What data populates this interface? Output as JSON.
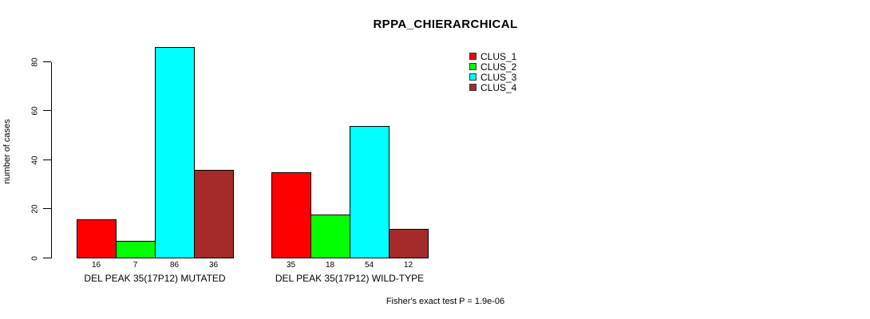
{
  "chart_data": {
    "type": "bar",
    "title": "RPPA_CHIERARCHICAL",
    "ylabel": "number of cases",
    "xlabel": "",
    "ylim": [
      0,
      86
    ],
    "yticks": [
      0,
      20,
      40,
      60,
      80
    ],
    "grid": false,
    "legend_position": "top-right",
    "categories": [
      "DEL PEAK 35(17P12) MUTATED",
      "DEL PEAK 35(17P12) WILD-TYPE"
    ],
    "series": [
      {
        "name": "CLUS_1",
        "color": "#FF0000",
        "values": [
          16,
          35
        ]
      },
      {
        "name": "CLUS_2",
        "color": "#00FF00",
        "values": [
          7,
          18
        ]
      },
      {
        "name": "CLUS_3",
        "color": "#00FFFF",
        "values": [
          86,
          54
        ]
      },
      {
        "name": "CLUS_4",
        "color": "#A52A2A",
        "values": [
          36,
          12
        ]
      }
    ],
    "bar_labels": [
      [
        "16",
        "7",
        "86",
        "36"
      ],
      [
        "35",
        "18",
        "54",
        "12"
      ]
    ],
    "annotation": "Fisher's exact test P = 1.9e-06"
  }
}
